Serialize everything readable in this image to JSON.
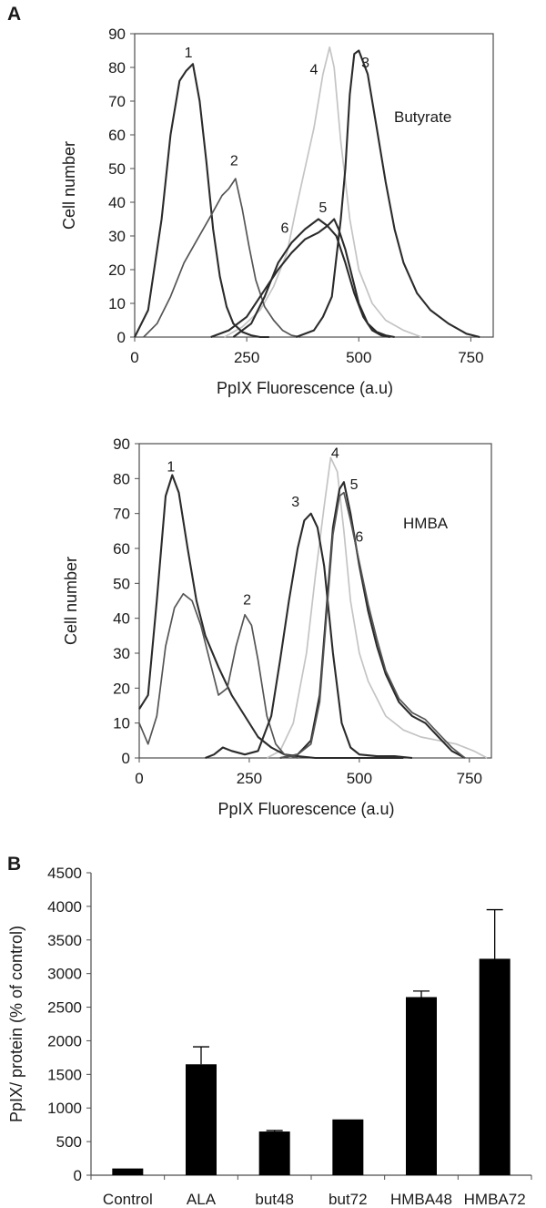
{
  "colors": {
    "dark_curve": "#2b2b2b",
    "mid_curve": "#555555",
    "light_curve": "#c4c4c4",
    "bar_fill": "#000000",
    "frame": "#4d4d4d",
    "plot_bg": "#ffffff"
  },
  "panel_labels": [
    "A",
    "B"
  ],
  "chart_data": [
    {
      "type": "line",
      "panel": "A",
      "treatment_label": "Butyrate",
      "xlabel": "PpIX Fluorescence (a.u)",
      "ylabel": "Cell number",
      "xlim": [
        0,
        800
      ],
      "ylim": [
        0,
        90
      ],
      "xticks": [
        0,
        250,
        500,
        750
      ],
      "yticks": [
        0,
        10,
        20,
        30,
        40,
        50,
        60,
        70,
        80,
        90
      ],
      "series": [
        {
          "name": "1",
          "tone": "dark",
          "label_at": [
            120,
            83
          ],
          "x": [
            0,
            30,
            60,
            80,
            100,
            115,
            130,
            145,
            160,
            175,
            190,
            205,
            220,
            240,
            260,
            280,
            300
          ],
          "y": [
            0,
            8,
            35,
            60,
            76,
            79,
            81,
            70,
            52,
            32,
            18,
            9,
            4,
            1.5,
            0.5,
            0,
            0
          ]
        },
        {
          "name": "2",
          "tone": "mid",
          "label_at": [
            222,
            51
          ],
          "x": [
            20,
            50,
            80,
            110,
            140,
            170,
            195,
            210,
            225,
            240,
            255,
            270,
            290,
            310,
            330,
            350,
            370
          ],
          "y": [
            0,
            4,
            12,
            22,
            29,
            36,
            42,
            44,
            47,
            38,
            27,
            17,
            9,
            5,
            2,
            0.5,
            0
          ]
        },
        {
          "name": "3",
          "tone": "dark",
          "label_at": [
            515,
            80
          ],
          "x": [
            360,
            400,
            420,
            440,
            460,
            470,
            480,
            490,
            500,
            520,
            540,
            560,
            580,
            600,
            630,
            660,
            700,
            740,
            770
          ],
          "y": [
            0,
            2,
            6,
            12,
            35,
            50,
            72,
            84,
            85,
            78,
            62,
            46,
            32,
            22,
            13,
            8,
            4,
            1,
            0
          ]
        },
        {
          "name": "4",
          "tone": "light",
          "label_at": [
            400,
            78
          ],
          "x": [
            200,
            240,
            280,
            310,
            340,
            360,
            380,
            400,
            420,
            435,
            445,
            460,
            480,
            500,
            530,
            560,
            600,
            640
          ],
          "y": [
            0,
            3,
            8,
            15,
            25,
            38,
            50,
            62,
            78,
            86,
            80,
            58,
            35,
            20,
            10,
            5,
            2,
            0
          ]
        },
        {
          "name": "5",
          "tone": "dark",
          "label_at": [
            420,
            37
          ],
          "x": [
            170,
            210,
            250,
            290,
            320,
            350,
            380,
            410,
            430,
            445,
            455,
            470,
            485,
            500,
            520,
            540,
            560,
            580
          ],
          "y": [
            0,
            2,
            6,
            14,
            20,
            25,
            29,
            31,
            33,
            35,
            32,
            26,
            18,
            10,
            4,
            1.5,
            0.5,
            0
          ]
        },
        {
          "name": "6",
          "tone": "dark",
          "label_at": [
            335,
            31
          ],
          "x": [
            220,
            260,
            290,
            320,
            350,
            380,
            410,
            430,
            450,
            470,
            490,
            510,
            530,
            550,
            570
          ],
          "y": [
            0,
            4,
            12,
            22,
            28,
            32,
            35,
            33,
            30,
            22,
            13,
            6,
            2,
            0.5,
            0
          ]
        }
      ]
    },
    {
      "type": "line",
      "panel": "A",
      "treatment_label": "HMBA",
      "xlabel": "PpIX Fluorescence (a.u)",
      "ylabel": "Cell number",
      "xlim": [
        0,
        800
      ],
      "ylim": [
        0,
        90
      ],
      "xticks": [
        0,
        250,
        500,
        750
      ],
      "yticks": [
        0,
        10,
        20,
        30,
        40,
        50,
        60,
        70,
        80,
        90
      ],
      "series": [
        {
          "name": "1",
          "tone": "dark",
          "label_at": [
            72,
            82
          ],
          "x": [
            0,
            20,
            40,
            60,
            75,
            90,
            110,
            130,
            150,
            180,
            210,
            240,
            270,
            300,
            330,
            360,
            400,
            440,
            480,
            520,
            560,
            600
          ],
          "y": [
            14,
            18,
            45,
            75,
            81,
            76,
            60,
            45,
            35,
            26,
            18,
            12,
            6,
            3,
            1,
            0.5,
            0,
            0,
            0,
            0,
            0,
            0
          ]
        },
        {
          "name": "2",
          "tone": "mid",
          "label_at": [
            245,
            44
          ],
          "x": [
            0,
            20,
            40,
            60,
            80,
            100,
            120,
            140,
            160,
            180,
            200,
            220,
            240,
            255,
            270,
            290,
            310,
            330,
            360
          ],
          "y": [
            10,
            4,
            12,
            32,
            43,
            47,
            45,
            38,
            28,
            18,
            20,
            32,
            41,
            38,
            28,
            12,
            4,
            1,
            0
          ]
        },
        {
          "name": "3",
          "tone": "dark",
          "label_at": [
            355,
            72
          ],
          "x": [
            150,
            170,
            190,
            210,
            240,
            270,
            300,
            320,
            340,
            360,
            375,
            390,
            405,
            420,
            440,
            460,
            480,
            500,
            540,
            580,
            620
          ],
          "y": [
            0,
            1,
            3,
            2,
            1,
            2,
            12,
            28,
            45,
            60,
            68,
            70,
            66,
            55,
            30,
            10,
            3,
            1,
            0.5,
            0.5,
            0
          ]
        },
        {
          "name": "4",
          "tone": "light",
          "label_at": [
            445,
            86
          ],
          "x": [
            290,
            320,
            350,
            380,
            400,
            420,
            435,
            450,
            465,
            480,
            500,
            520,
            540,
            560,
            600,
            640,
            680,
            720,
            760,
            790
          ],
          "y": [
            0,
            2,
            10,
            30,
            52,
            72,
            86,
            82,
            65,
            45,
            30,
            22,
            17,
            12,
            8,
            6,
            5,
            4,
            2,
            0
          ]
        },
        {
          "name": "5",
          "tone": "dark",
          "label_at": [
            488,
            77
          ],
          "x": [
            320,
            360,
            390,
            410,
            425,
            440,
            455,
            465,
            480,
            500,
            520,
            540,
            560,
            590,
            620,
            650,
            680,
            710,
            740
          ],
          "y": [
            0,
            1,
            5,
            18,
            42,
            66,
            77,
            79,
            70,
            55,
            42,
            32,
            24,
            16,
            12,
            10,
            6,
            2,
            0
          ]
        },
        {
          "name": "6",
          "tone": "mid",
          "label_at": [
            500,
            62
          ],
          "x": [
            320,
            360,
            390,
            410,
            425,
            440,
            455,
            465,
            480,
            500,
            520,
            540,
            560,
            590,
            620,
            650,
            680,
            710,
            740
          ],
          "y": [
            0,
            1,
            4,
            16,
            40,
            64,
            75,
            76,
            68,
            56,
            44,
            34,
            25,
            17,
            13,
            11,
            7,
            3,
            0
          ]
        }
      ]
    },
    {
      "type": "bar",
      "panel": "B",
      "ylabel": "PpIX/ protein (% of control)",
      "ylim": [
        0,
        4500
      ],
      "yticks": [
        0,
        500,
        1000,
        1500,
        2000,
        2500,
        3000,
        3500,
        4000,
        4500
      ],
      "categories": [
        "Control",
        "ALA",
        "but48",
        "but72",
        "HMBA48",
        "HMBA72"
      ],
      "values": [
        100,
        1650,
        650,
        830,
        2650,
        3220
      ],
      "errors": [
        0,
        260,
        15,
        0,
        90,
        730
      ]
    }
  ]
}
